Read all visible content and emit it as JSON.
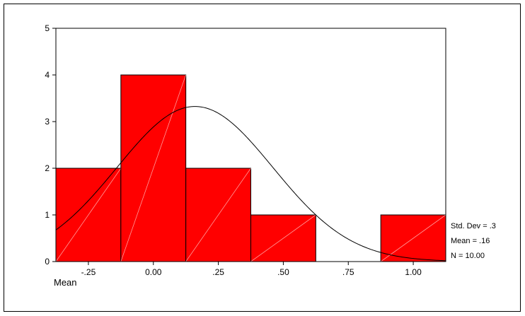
{
  "chart_data": {
    "type": "bar",
    "subtype": "histogram",
    "xlabel": "Mean",
    "ylabel": "",
    "bins": [
      {
        "start": -0.375,
        "end": -0.125,
        "count": 2
      },
      {
        "start": -0.125,
        "end": 0.125,
        "count": 4
      },
      {
        "start": 0.125,
        "end": 0.375,
        "count": 2
      },
      {
        "start": 0.375,
        "end": 0.625,
        "count": 1
      },
      {
        "start": 0.625,
        "end": 0.875,
        "count": 0
      },
      {
        "start": 0.875,
        "end": 1.125,
        "count": 1
      }
    ],
    "xlim": [
      -0.375,
      1.125
    ],
    "ylim": [
      0,
      5
    ],
    "xticks": [
      -0.25,
      0,
      0.25,
      0.5,
      0.75,
      1.0
    ],
    "xtick_labels": [
      "-.25",
      "0.00",
      ".25",
      ".50",
      ".75",
      "1.00"
    ],
    "yticks": [
      0,
      1,
      2,
      3,
      4,
      5
    ],
    "ytick_labels": [
      "0",
      "1",
      "2",
      "3",
      "4",
      "5"
    ],
    "normal_curve": {
      "mean": 0.16,
      "std_dev": 0.3,
      "n": 10
    },
    "stats": [
      "Std. Dev = .3",
      "Mean = .16",
      "N = 10.00"
    ],
    "bar_color": "#ff0000",
    "bar_edge_color": "#000000",
    "curve_color": "#000000",
    "grid": false
  }
}
